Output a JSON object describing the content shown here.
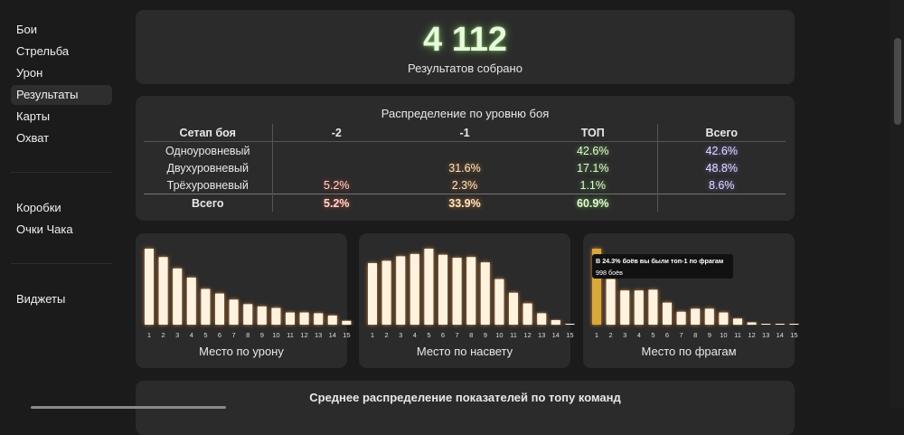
{
  "sidebar": {
    "group1": [
      "Бои",
      "Стрельба",
      "Урон",
      "Результаты",
      "Карты",
      "Охват"
    ],
    "group2": [
      "Коробки",
      "Очки Чака"
    ],
    "group3": [
      "Виджеты"
    ]
  },
  "summary": {
    "count": "4 112",
    "label": "Результатов собрано"
  },
  "distribution": {
    "title": "Распределение по уровню боя",
    "headers": [
      "Сетап боя",
      "-2",
      "-1",
      "ТОП",
      "Всего"
    ],
    "rows": [
      [
        "Одноуровневый",
        "",
        "",
        "42.6%",
        "42.6%"
      ],
      [
        "Двухуровневый",
        "",
        "31.6%",
        "17.1%",
        "48.8%"
      ],
      [
        "Трёхуровневый",
        "5.2%",
        "2.3%",
        "1.1%",
        "8.6%"
      ]
    ],
    "total": [
      "Всего",
      "5.2%",
      "33.9%",
      "60.9%",
      ""
    ]
  },
  "charts": {
    "damage": {
      "title": "Место по урону",
      "chart_data": {
        "type": "bar",
        "categories": [
          "1",
          "2",
          "3",
          "4",
          "5",
          "6",
          "7",
          "8",
          "9",
          "10",
          "11",
          "12",
          "13",
          "14",
          "15"
        ],
        "values": [
          1.0,
          0.89,
          0.74,
          0.62,
          0.47,
          0.41,
          0.33,
          0.27,
          0.24,
          0.22,
          0.16,
          0.16,
          0.15,
          0.12,
          0.05
        ]
      }
    },
    "spotting": {
      "title": "Место по насвету",
      "chart_data": {
        "type": "bar",
        "categories": [
          "1",
          "2",
          "3",
          "4",
          "5",
          "6",
          "7",
          "8",
          "9",
          "10",
          "11",
          "12",
          "13",
          "14",
          "15"
        ],
        "values": [
          0.81,
          0.84,
          0.9,
          0.93,
          1.0,
          0.92,
          0.88,
          0.89,
          0.82,
          0.6,
          0.42,
          0.28,
          0.15,
          0.06,
          0.01
        ]
      }
    },
    "frags": {
      "title": "Место по фрагам",
      "tooltip": {
        "line1": "В 24.3% боёв вы были топ-1 по фрагам",
        "line2": "998 боёв"
      },
      "chart_data": {
        "type": "bar",
        "categories": [
          "1",
          "2",
          "3",
          "4",
          "5",
          "6",
          "7",
          "8",
          "9",
          "10",
          "11",
          "12",
          "13",
          "14",
          "15"
        ],
        "values": [
          1.0,
          0.6,
          0.45,
          0.45,
          0.46,
          0.29,
          0.17,
          0.21,
          0.21,
          0.16,
          0.08,
          0.03,
          0.01,
          0.01,
          0.01
        ]
      }
    }
  },
  "bottom": {
    "title": "Среднее распределение показателей по топу команд"
  },
  "colors": {
    "background": "#1b1b1b",
    "card": "#2b2b2b",
    "bar": "#fff3e0",
    "glow": "#ff9a3c",
    "highlight": "#d9a83a"
  }
}
